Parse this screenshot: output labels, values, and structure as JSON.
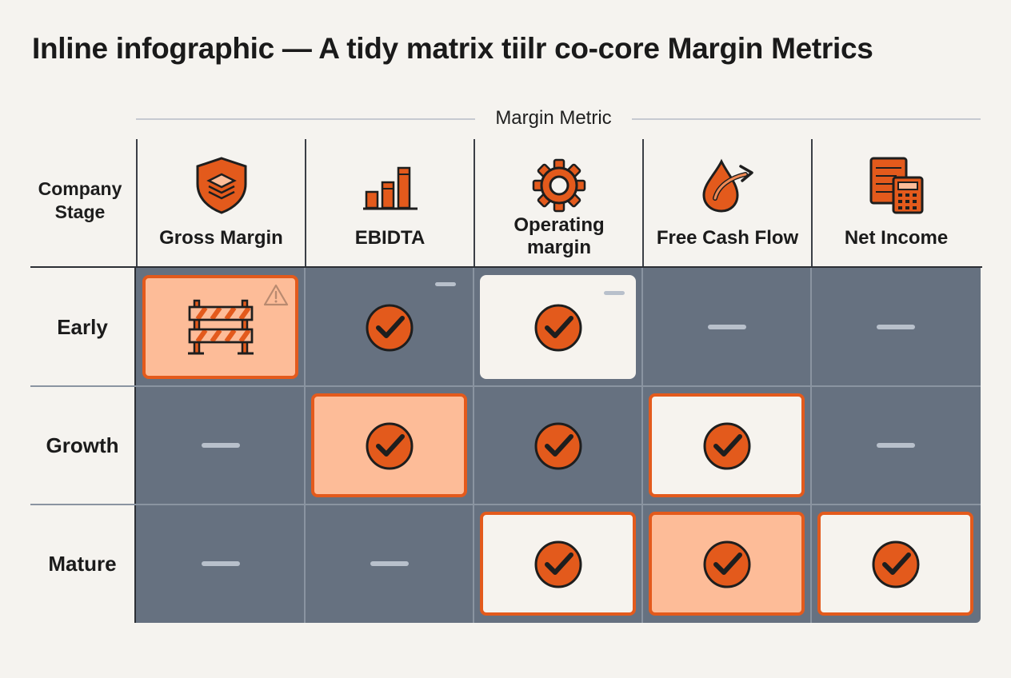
{
  "title": "Inline infographic — A tidy matrix tiilr co-core Margin Metrics",
  "column_axis_label": "Margin Metric",
  "row_axis_label": "Company Stage",
  "columns": [
    {
      "name": "Gross Margin",
      "icon": "shield-layers-icon"
    },
    {
      "name": "EBIDTA",
      "icon": "bar-chart-icon"
    },
    {
      "name": "Operating margin",
      "icon": "gear-icon"
    },
    {
      "name": "Free Cash Flow",
      "icon": "drop-arrow-icon"
    },
    {
      "name": "Net Income",
      "icon": "calculator-ledger-icon"
    }
  ],
  "rows": [
    {
      "label": "Early",
      "cells": [
        {
          "state": "warning",
          "style": "peach",
          "icon": "barrier-icon"
        },
        {
          "state": "check",
          "style": "none",
          "marker": "dash"
        },
        {
          "state": "check",
          "style": "white",
          "marker": "dash"
        },
        {
          "state": "none",
          "style": "none"
        },
        {
          "state": "none",
          "style": "none"
        }
      ]
    },
    {
      "label": "Growth",
      "cells": [
        {
          "state": "none",
          "style": "none"
        },
        {
          "state": "check",
          "style": "peach"
        },
        {
          "state": "check",
          "style": "none"
        },
        {
          "state": "check",
          "style": "white-outline"
        },
        {
          "state": "none",
          "style": "none"
        }
      ]
    },
    {
      "label": "Mature",
      "cells": [
        {
          "state": "none",
          "style": "none"
        },
        {
          "state": "none",
          "style": "none"
        },
        {
          "state": "check",
          "style": "white-outline"
        },
        {
          "state": "check",
          "style": "peach"
        },
        {
          "state": "check",
          "style": "white-outline"
        }
      ]
    }
  ],
  "colors": {
    "accent": "#e35a1c",
    "peach": "#fdbc98",
    "grid": "#667180",
    "card": "#f6f3ee",
    "background": "#f5f3ef"
  }
}
